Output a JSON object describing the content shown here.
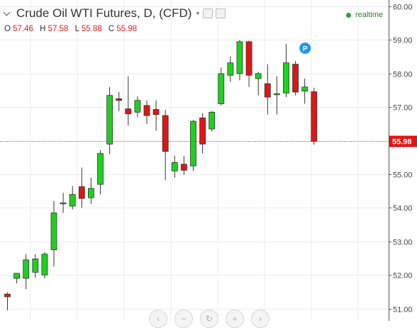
{
  "header": {
    "title": "Crude Oil WTI Futures, D, (CFD)",
    "ohlc": [
      {
        "key": "O",
        "value": "57.46"
      },
      {
        "key": "H",
        "value": "57.58"
      },
      {
        "key": "L",
        "value": "55.88"
      },
      {
        "key": "C",
        "value": "55.98"
      }
    ],
    "realtime_label": "realtime"
  },
  "colors": {
    "up": "#1fd11f",
    "down": "#e01515",
    "wick": "#333333",
    "grid": "#ececec",
    "price_line": "#c0392b",
    "price_label_bg": "#e01515",
    "marker": "#2196f3"
  },
  "icons": [
    "chevron-down-icon",
    "settings-icon",
    "realtime-dot-icon",
    "pin-marker-icon"
  ],
  "nav_buttons": [
    {
      "icon": "scroll-left-icon",
      "glyph": "‹"
    },
    {
      "icon": "zoom-out-icon",
      "glyph": "−"
    },
    {
      "icon": "reset-icon",
      "glyph": "↻"
    },
    {
      "icon": "zoom-in-icon",
      "glyph": "+"
    },
    {
      "icon": "scroll-right-icon",
      "glyph": "›"
    }
  ],
  "chart_data": {
    "type": "candlestick",
    "title": "Crude Oil WTI Futures, D, (CFD)",
    "timeframe": "D",
    "y_axis": {
      "position": "right",
      "ylim": [
        50.8,
        60.15
      ],
      "ticks": [
        51,
        52,
        53,
        54,
        55,
        56,
        57,
        58,
        59,
        60
      ]
    },
    "y_tick_labels": [
      "51.00",
      "52.00",
      "53.00",
      "54.00",
      "55.00",
      "56.00",
      "57.00",
      "58.00",
      "59.00",
      "60.00"
    ],
    "grid": true,
    "last_price": 55.98,
    "last_price_label": "55.98",
    "marker": {
      "label": "P",
      "index": 32
    },
    "candles": [
      {
        "o": 51.43,
        "h": 51.48,
        "l": 50.95,
        "c": 51.35
      },
      {
        "o": 51.9,
        "h": 52.02,
        "l": 51.75,
        "c": 52.05
      },
      {
        "o": 51.9,
        "h": 52.62,
        "l": 51.58,
        "c": 52.45
      },
      {
        "o": 52.08,
        "h": 52.62,
        "l": 51.92,
        "c": 52.48
      },
      {
        "o": 52.0,
        "h": 52.68,
        "l": 51.9,
        "c": 52.62
      },
      {
        "o": 52.75,
        "h": 54.2,
        "l": 52.25,
        "c": 53.85
      },
      {
        "o": 54.15,
        "h": 54.45,
        "l": 53.85,
        "c": 54.15
      },
      {
        "o": 54.05,
        "h": 54.65,
        "l": 53.95,
        "c": 54.4
      },
      {
        "o": 54.63,
        "h": 55.2,
        "l": 54.0,
        "c": 54.28
      },
      {
        "o": 54.3,
        "h": 54.9,
        "l": 54.12,
        "c": 54.58
      },
      {
        "o": 54.7,
        "h": 55.72,
        "l": 54.4,
        "c": 55.62
      },
      {
        "o": 55.9,
        "h": 57.6,
        "l": 55.6,
        "c": 57.35
      },
      {
        "o": 57.25,
        "h": 57.45,
        "l": 56.88,
        "c": 57.2
      },
      {
        "o": 56.95,
        "h": 57.92,
        "l": 56.45,
        "c": 56.8
      },
      {
        "o": 56.85,
        "h": 57.32,
        "l": 56.7,
        "c": 57.2
      },
      {
        "o": 57.05,
        "h": 57.2,
        "l": 56.5,
        "c": 56.75
      },
      {
        "o": 56.93,
        "h": 57.2,
        "l": 56.3,
        "c": 56.78
      },
      {
        "o": 56.75,
        "h": 56.92,
        "l": 54.82,
        "c": 55.68
      },
      {
        "o": 55.1,
        "h": 55.55,
        "l": 54.9,
        "c": 55.35
      },
      {
        "o": 55.3,
        "h": 55.55,
        "l": 54.98,
        "c": 55.12
      },
      {
        "o": 55.25,
        "h": 56.62,
        "l": 55.1,
        "c": 56.58
      },
      {
        "o": 56.68,
        "h": 56.82,
        "l": 55.62,
        "c": 55.9
      },
      {
        "o": 56.35,
        "h": 56.88,
        "l": 56.28,
        "c": 56.85
      },
      {
        "o": 57.1,
        "h": 58.18,
        "l": 57.05,
        "c": 58.0
      },
      {
        "o": 57.95,
        "h": 58.52,
        "l": 57.75,
        "c": 58.32
      },
      {
        "o": 58.0,
        "h": 59.0,
        "l": 57.8,
        "c": 58.95
      },
      {
        "o": 58.95,
        "h": 58.98,
        "l": 57.6,
        "c": 57.95
      },
      {
        "o": 57.85,
        "h": 58.05,
        "l": 57.35,
        "c": 58.0
      },
      {
        "o": 57.7,
        "h": 58.28,
        "l": 56.78,
        "c": 57.3
      },
      {
        "o": 57.38,
        "h": 57.92,
        "l": 56.78,
        "c": 57.4
      },
      {
        "o": 57.42,
        "h": 58.88,
        "l": 57.3,
        "c": 58.32
      },
      {
        "o": 58.28,
        "h": 58.38,
        "l": 57.35,
        "c": 57.45
      },
      {
        "o": 57.48,
        "h": 57.85,
        "l": 57.1,
        "c": 57.6
      },
      {
        "o": 57.46,
        "h": 57.58,
        "l": 55.88,
        "c": 55.98
      }
    ]
  }
}
